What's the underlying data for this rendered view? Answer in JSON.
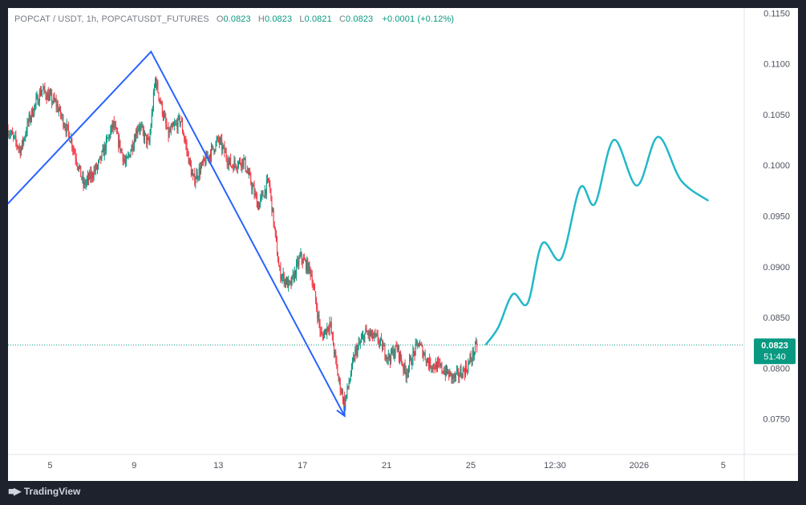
{
  "header": {
    "symbol": "POPCAT / USDT, 1h, POPCATUSDT_FUTURES",
    "o_label": "O",
    "o_value": "0.0823",
    "h_label": "H",
    "h_value": "0.0823",
    "l_label": "L",
    "l_value": "0.0821",
    "c_label": "C",
    "c_value": "0.0823",
    "change": "+0.0001 (+0.12%)"
  },
  "price_tag": {
    "price": "0.0823",
    "countdown": "51:40"
  },
  "footer": {
    "logo_text": "TradingView",
    "logo_icon": "tradingview-logo-icon"
  },
  "colors": {
    "up": "#089981",
    "down": "#f23645",
    "zigzag": "#2962ff",
    "projection": "#22b8c8",
    "price_line": "#089981"
  },
  "chart_data": {
    "type": "candlestick",
    "symbol": "POPCAT / USDT",
    "interval": "1h",
    "ylim": [
      0.0715,
      0.1155
    ],
    "y_ticks": [
      "0.0750",
      "0.0800",
      "0.0850",
      "0.0900",
      "0.0950",
      "0.1000",
      "0.1050",
      "0.1100",
      "0.1150"
    ],
    "x_ticks": [
      "5",
      "9",
      "13",
      "17",
      "21",
      "25",
      "12:30",
      "2026",
      "5"
    ],
    "x_range_days": [
      3.0,
      38.0
    ],
    "x_tick_days": [
      5,
      9,
      13,
      17,
      21,
      25,
      29,
      33,
      37
    ],
    "price_anchors": [
      [
        3.0,
        0.1035
      ],
      [
        3.6,
        0.1015
      ],
      [
        4.0,
        0.1045
      ],
      [
        4.6,
        0.1075
      ],
      [
        5.3,
        0.106
      ],
      [
        6.0,
        0.1025
      ],
      [
        6.6,
        0.098
      ],
      [
        7.3,
        0.1
      ],
      [
        8.0,
        0.104
      ],
      [
        8.6,
        0.1
      ],
      [
        9.2,
        0.104
      ],
      [
        9.7,
        0.102
      ],
      [
        10.0,
        0.1085
      ],
      [
        10.6,
        0.103
      ],
      [
        11.2,
        0.1045
      ],
      [
        11.8,
        0.0985
      ],
      [
        12.4,
        0.1005
      ],
      [
        13.0,
        0.1025
      ],
      [
        13.6,
        0.1
      ],
      [
        14.2,
        0.1005
      ],
      [
        14.9,
        0.096
      ],
      [
        15.4,
        0.0985
      ],
      [
        15.9,
        0.0895
      ],
      [
        16.4,
        0.088
      ],
      [
        16.9,
        0.091
      ],
      [
        17.4,
        0.0895
      ],
      [
        17.9,
        0.083
      ],
      [
        18.3,
        0.0845
      ],
      [
        18.7,
        0.079
      ],
      [
        19.0,
        0.0765
      ],
      [
        19.5,
        0.0815
      ],
      [
        20.0,
        0.0835
      ],
      [
        20.6,
        0.0828
      ],
      [
        21.1,
        0.081
      ],
      [
        21.5,
        0.082
      ],
      [
        21.9,
        0.0795
      ],
      [
        22.5,
        0.0825
      ],
      [
        23.0,
        0.0805
      ],
      [
        23.6,
        0.08
      ],
      [
        24.2,
        0.079
      ],
      [
        24.8,
        0.08
      ],
      [
        25.3,
        0.0823
      ]
    ],
    "zigzag": [
      [
        2.8,
        0.0958
      ],
      [
        9.8,
        0.1112
      ],
      [
        19.0,
        0.0753
      ]
    ],
    "projection": [
      [
        25.7,
        0.0823
      ],
      [
        26.3,
        0.084
      ],
      [
        27.0,
        0.0873
      ],
      [
        27.7,
        0.0864
      ],
      [
        28.4,
        0.0923
      ],
      [
        29.3,
        0.0908
      ],
      [
        30.2,
        0.0978
      ],
      [
        30.9,
        0.0962
      ],
      [
        31.8,
        0.1025
      ],
      [
        32.9,
        0.098
      ],
      [
        33.9,
        0.1028
      ],
      [
        35.0,
        0.0985
      ],
      [
        36.3,
        0.0965
      ]
    ],
    "last_price": 0.0823
  }
}
